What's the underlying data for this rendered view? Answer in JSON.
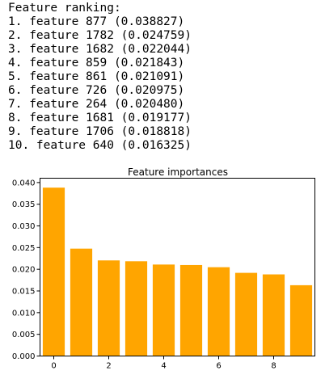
{
  "output": {
    "heading": "Feature ranking:",
    "lines": [
      "1. feature 877 (0.038827)",
      "2. feature 1782 (0.024759)",
      "3. feature 1682 (0.022044)",
      "4. feature 859 (0.021843)",
      "5. feature 861 (0.021091)",
      "6. feature 726 (0.020975)",
      "7. feature 264 (0.020480)",
      "8. feature 1681 (0.019177)",
      "9. feature 1706 (0.018818)",
      "10. feature 640 (0.016325)"
    ]
  },
  "chart_data": {
    "type": "bar",
    "title": "Feature importances",
    "x": [
      0,
      1,
      2,
      3,
      4,
      5,
      6,
      7,
      8,
      9
    ],
    "values": [
      0.038827,
      0.024759,
      0.022044,
      0.021843,
      0.021091,
      0.020975,
      0.02048,
      0.019177,
      0.018818,
      0.016325
    ],
    "bar_color": "#ffa500",
    "xlim": [
      -0.5,
      9.5
    ],
    "ylim": [
      0,
      0.041
    ],
    "xticks": [
      0,
      2,
      4,
      6,
      8
    ],
    "xtick_labels": [
      "0",
      "2",
      "4",
      "6",
      "8"
    ],
    "yticks": [
      0,
      0.005,
      0.01,
      0.015,
      0.02,
      0.025,
      0.03,
      0.035,
      0.04
    ],
    "ytick_labels": [
      "0.000",
      "0.005",
      "0.010",
      "0.015",
      "0.020",
      "0.025",
      "0.030",
      "0.035",
      "0.040"
    ],
    "xlabel": "",
    "ylabel": "",
    "grid": false,
    "legend": "none"
  }
}
